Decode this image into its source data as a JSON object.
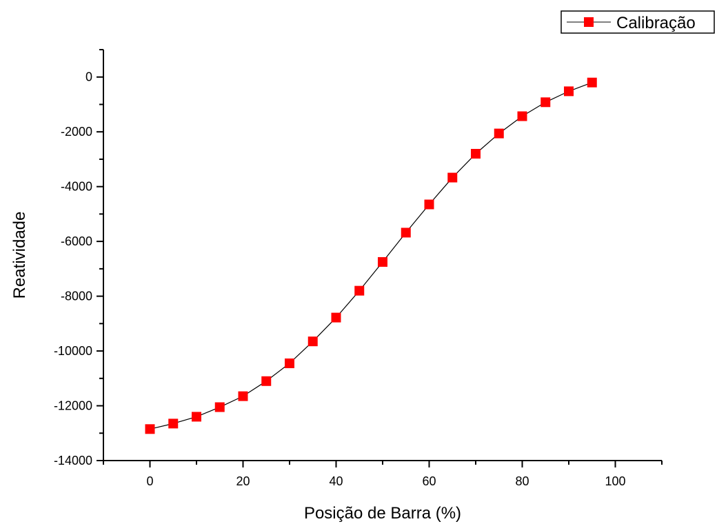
{
  "chart_data": {
    "type": "line",
    "title": "",
    "xlabel": "Posição de Barra (%)",
    "ylabel": "Reatividade",
    "xlim": [
      -10,
      110
    ],
    "ylim": [
      -14000,
      1000
    ],
    "x_ticks": [
      0,
      20,
      40,
      60,
      80,
      100
    ],
    "y_ticks": [
      0,
      -2000,
      -4000,
      -6000,
      -8000,
      -10000,
      -12000,
      -14000
    ],
    "x_tick_labels": [
      "0",
      "20",
      "40",
      "60",
      "80",
      "100"
    ],
    "y_tick_labels": [
      "0",
      "-2000",
      "-4000",
      "-6000",
      "-8000",
      "-10000",
      "-12000",
      "-14000"
    ],
    "grid": false,
    "legend_position": "top-right",
    "series": [
      {
        "name": "Calibração",
        "line_color": "#000000",
        "marker": "square",
        "marker_color": "#ff0000",
        "x": [
          0,
          5,
          10,
          15,
          20,
          25,
          30,
          35,
          40,
          45,
          50,
          55,
          60,
          65,
          70,
          75,
          80,
          85,
          90,
          95
        ],
        "y": [
          -12850,
          -12650,
          -12400,
          -12050,
          -11650,
          -11100,
          -10450,
          -9650,
          -8780,
          -7800,
          -6750,
          -5680,
          -4650,
          -3670,
          -2800,
          -2060,
          -1430,
          -920,
          -520,
          -200
        ]
      }
    ]
  }
}
